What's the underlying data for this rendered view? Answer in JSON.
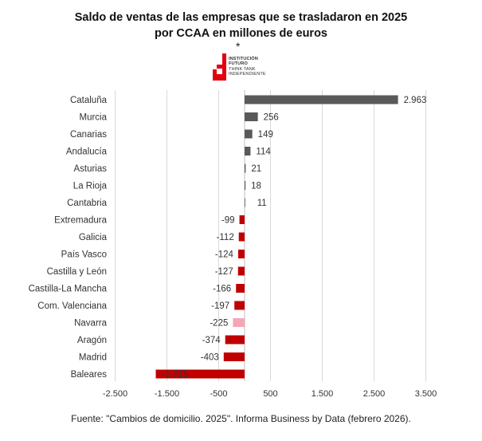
{
  "header": {
    "title_line1": "Saldo de ventas de las empresas que se trasladaron en 2025",
    "title_line2": "por CCAA en millones de euros",
    "asterisk": "*"
  },
  "logo": {
    "icon": "institucion-futuro-logo-icon",
    "lines": [
      "INSTITUCIÓN",
      "FUTURO",
      "THINK TANK",
      "INDEPENDIENTE"
    ],
    "color": "#e3000f"
  },
  "source": "Fuente: \"Cambios de domicilio. 2025\". Informa Business by Data (febrero 2026).",
  "colors": {
    "positive": "#595959",
    "negative": "#c00000",
    "highlight": "#f4a6b4",
    "grid": "#d9d9d9",
    "value_label_inside": "#ffffff"
  },
  "chart_data": {
    "type": "bar",
    "orientation": "horizontal",
    "title": "Saldo de ventas de las empresas que se trasladaron en 2025 por CCAA en millones de euros",
    "xlabel": "",
    "ylabel": "",
    "xlim": [
      -2500,
      3500
    ],
    "xticks": [
      -2500,
      -1500,
      -500,
      500,
      1500,
      2500,
      3500
    ],
    "xtick_labels": [
      "-2.500",
      "-1.500",
      "-500",
      "500",
      "1.500",
      "2.500",
      "3.500"
    ],
    "grid": true,
    "legend": "none",
    "categories": [
      "Cataluña",
      "Murcia",
      "Canarias",
      "Andalucía",
      "Asturias",
      "La Rioja",
      "Cantabria",
      "Extremadura",
      "Galicia",
      "País Vasco",
      "Castilla y León",
      "Castilla-La Mancha",
      "Com. Valenciana",
      "Navarra",
      "Aragón",
      "Madrid",
      "Baleares"
    ],
    "values": [
      2963,
      256,
      149,
      114,
      21,
      18,
      11,
      -99,
      -112,
      -124,
      -127,
      -166,
      -197,
      -225,
      -374,
      -403,
      -1715
    ],
    "value_labels": [
      "2.963",
      "256",
      "149",
      "114",
      "21",
      "18",
      "11",
      "-99",
      "-112",
      "-124",
      "-127",
      "-166",
      "-197",
      "-225",
      "-374",
      "-403",
      "-1.715"
    ],
    "highlight_category": "Navarra"
  }
}
